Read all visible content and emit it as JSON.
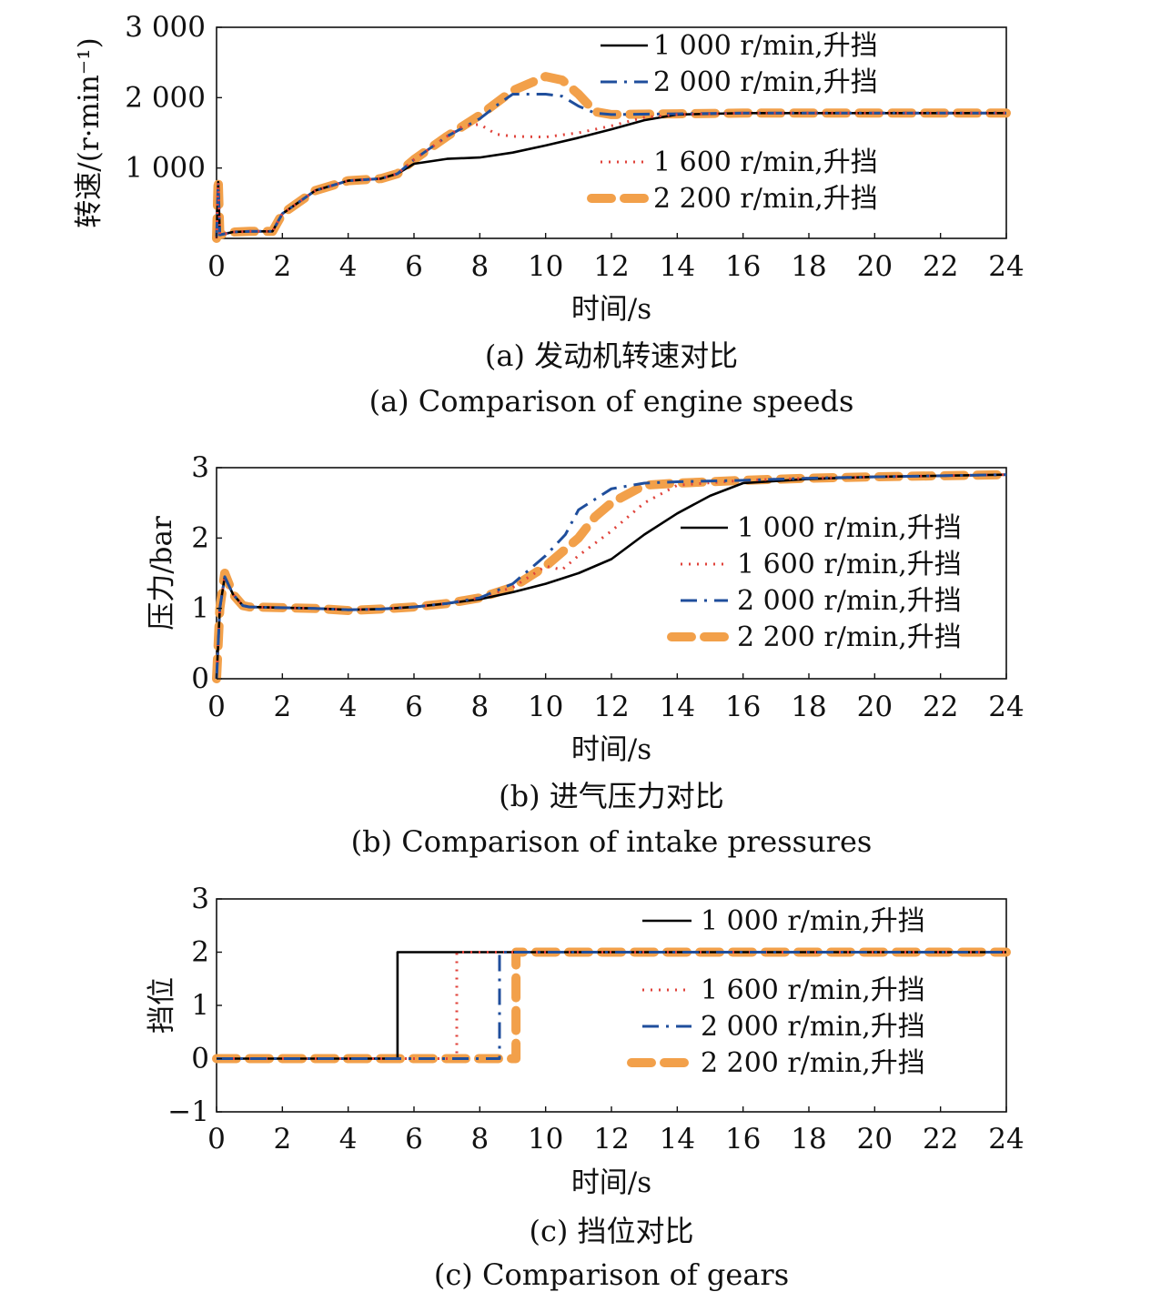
{
  "chart_data": [
    {
      "type": "line",
      "panel_label": "(a) 发动机转速对比",
      "panel_label_en": "(a) Comparison of engine speeds",
      "xlabel": "时间/s",
      "ylabel": "转速/(r·min⁻¹)",
      "xlim": [
        0,
        24
      ],
      "ylim": [
        0,
        3000
      ],
      "xticks": [
        "0",
        "2",
        "4",
        "6",
        "8",
        "10",
        "12",
        "14",
        "16",
        "18",
        "20",
        "22",
        "24"
      ],
      "yticks": [
        "3 000",
        "2 000",
        "1 000"
      ],
      "ytick_values": [
        3000,
        2000,
        1000
      ],
      "grid": false,
      "legend_position": "right",
      "series": [
        {
          "name": "1 000 r/min,升挡",
          "color": "#000000",
          "style": "solid",
          "x": [
            0,
            0.05,
            0.1,
            0.2,
            0.5,
            1.0,
            1.7,
            2.0,
            3.0,
            4.0,
            5.0,
            5.5,
            6.0,
            7.0,
            8.0,
            9.0,
            10.0,
            11.0,
            12.0,
            13.0,
            14.0,
            16.0,
            20.0,
            24.0
          ],
          "y": [
            0,
            800,
            50,
            60,
            90,
            100,
            100,
            350,
            680,
            820,
            850,
            920,
            1060,
            1130,
            1150,
            1220,
            1320,
            1430,
            1550,
            1680,
            1760,
            1780,
            1780,
            1780
          ]
        },
        {
          "name": "2 000 r/min,升挡",
          "color": "#1f4e9c",
          "style": "dashdot",
          "x": [
            0,
            0.05,
            0.1,
            0.2,
            0.5,
            1.0,
            1.7,
            2.0,
            3.0,
            4.0,
            5.0,
            5.5,
            6.0,
            7.0,
            8.0,
            8.6,
            9.0,
            10.0,
            10.5,
            11.0,
            11.5,
            12.0,
            14.0,
            16.0,
            20.0,
            24.0
          ],
          "y": [
            0,
            800,
            50,
            60,
            90,
            100,
            100,
            350,
            680,
            820,
            850,
            920,
            1120,
            1450,
            1700,
            1920,
            2050,
            2050,
            2020,
            1880,
            1780,
            1760,
            1770,
            1780,
            1780,
            1780
          ]
        },
        {
          "name": "1 600 r/min,升挡",
          "color": "#e0433b",
          "style": "dotted",
          "x": [
            0,
            0.05,
            0.1,
            0.2,
            0.5,
            1.0,
            1.7,
            2.0,
            3.0,
            4.0,
            5.0,
            5.5,
            6.0,
            7.0,
            7.5,
            8.0,
            8.5,
            9.0,
            10.0,
            11.0,
            12.0,
            13.0,
            14.0,
            16.0,
            20.0,
            24.0
          ],
          "y": [
            0,
            800,
            50,
            60,
            90,
            100,
            100,
            350,
            680,
            820,
            850,
            920,
            1120,
            1450,
            1600,
            1620,
            1480,
            1450,
            1440,
            1500,
            1600,
            1720,
            1760,
            1780,
            1780,
            1780
          ]
        },
        {
          "name": "2 200 r/min,升挡",
          "color": "#f2a04a",
          "style": "dashed-thick",
          "x": [
            0,
            0.05,
            0.1,
            0.2,
            0.5,
            1.0,
            1.7,
            2.0,
            3.0,
            4.0,
            5.0,
            5.5,
            6.0,
            7.0,
            8.0,
            9.0,
            9.5,
            10.0,
            10.5,
            11.0,
            11.5,
            12.0,
            14.0,
            16.0,
            20.0,
            24.0
          ],
          "y": [
            0,
            850,
            50,
            60,
            90,
            100,
            100,
            350,
            680,
            820,
            850,
            920,
            1120,
            1450,
            1750,
            2100,
            2200,
            2300,
            2250,
            2050,
            1800,
            1760,
            1770,
            1780,
            1780,
            1780
          ]
        }
      ]
    },
    {
      "type": "line",
      "panel_label": "(b) 进气压力对比",
      "panel_label_en": "(b) Comparison of intake pressures",
      "xlabel": "时间/s",
      "ylabel": "压力/bar",
      "xlim": [
        0,
        24
      ],
      "ylim": [
        0,
        3
      ],
      "xticks": [
        "0",
        "2",
        "4",
        "6",
        "8",
        "10",
        "12",
        "14",
        "16",
        "18",
        "20",
        "22",
        "24"
      ],
      "yticks": [
        "3",
        "2",
        "1",
        "0"
      ],
      "ytick_values": [
        3,
        2,
        1,
        0
      ],
      "grid": false,
      "legend_position": "right",
      "series": [
        {
          "name": "1 000 r/min,升挡",
          "color": "#000000",
          "style": "solid",
          "x": [
            0,
            0.1,
            0.25,
            0.5,
            0.8,
            1.0,
            2.0,
            3.0,
            4.0,
            5.0,
            6.0,
            7.0,
            8.0,
            9.0,
            10.0,
            11.0,
            12.0,
            13.0,
            14.0,
            15.0,
            16.0,
            18.0,
            20.0,
            24.0
          ],
          "y": [
            0,
            1.0,
            1.45,
            1.2,
            1.04,
            1.02,
            1.01,
            1.0,
            0.98,
            0.99,
            1.02,
            1.07,
            1.13,
            1.23,
            1.35,
            1.5,
            1.7,
            2.05,
            2.35,
            2.6,
            2.78,
            2.84,
            2.87,
            2.9
          ]
        },
        {
          "name": "1 600 r/min,升挡",
          "color": "#e0433b",
          "style": "dotted",
          "x": [
            0,
            0.1,
            0.25,
            0.5,
            0.8,
            1.0,
            2.0,
            3.0,
            4.0,
            5.0,
            6.0,
            7.0,
            8.0,
            9.0,
            10.0,
            10.5,
            11.0,
            12.0,
            13.0,
            14.0,
            16.0,
            18.0,
            20.0,
            24.0
          ],
          "y": [
            0,
            1.0,
            1.45,
            1.2,
            1.04,
            1.02,
            1.01,
            1.0,
            0.98,
            0.99,
            1.02,
            1.07,
            1.15,
            1.3,
            1.6,
            1.55,
            1.75,
            2.1,
            2.5,
            2.75,
            2.82,
            2.85,
            2.87,
            2.9
          ]
        },
        {
          "name": "2 000 r/min,升挡",
          "color": "#1f4e9c",
          "style": "dashdot",
          "x": [
            0,
            0.1,
            0.25,
            0.5,
            0.8,
            1.0,
            2.0,
            3.0,
            4.0,
            5.0,
            6.0,
            7.0,
            8.0,
            9.0,
            10.0,
            10.6,
            11.0,
            12.0,
            13.0,
            14.0,
            16.0,
            18.0,
            20.0,
            24.0
          ],
          "y": [
            0,
            1.0,
            1.45,
            1.2,
            1.04,
            1.02,
            1.01,
            1.0,
            0.98,
            0.99,
            1.02,
            1.07,
            1.15,
            1.35,
            1.75,
            2.05,
            2.4,
            2.7,
            2.78,
            2.8,
            2.82,
            2.85,
            2.87,
            2.9
          ]
        },
        {
          "name": "2 200 r/min,升挡",
          "color": "#f2a04a",
          "style": "dashed-thick",
          "x": [
            0,
            0.1,
            0.25,
            0.5,
            0.8,
            1.0,
            2.0,
            3.0,
            4.0,
            5.0,
            6.0,
            7.0,
            8.0,
            9.0,
            10.0,
            11.0,
            11.5,
            12.0,
            13.0,
            14.0,
            16.0,
            18.0,
            20.0,
            24.0
          ],
          "y": [
            0,
            1.0,
            1.5,
            1.2,
            1.04,
            1.02,
            1.01,
            1.0,
            0.97,
            0.99,
            1.02,
            1.07,
            1.15,
            1.3,
            1.6,
            2.0,
            2.3,
            2.5,
            2.75,
            2.78,
            2.82,
            2.85,
            2.87,
            2.9
          ]
        }
      ]
    },
    {
      "type": "line",
      "panel_label": "(c) 挡位对比",
      "panel_label_en": "(c) Comparison of gears",
      "xlabel": "时间/s",
      "ylabel": "挡位",
      "xlim": [
        0,
        24
      ],
      "ylim": [
        -1,
        3
      ],
      "xticks": [
        "0",
        "2",
        "4",
        "6",
        "8",
        "10",
        "12",
        "14",
        "16",
        "18",
        "20",
        "22",
        "24"
      ],
      "yticks": [
        "3",
        "2",
        "1",
        "0",
        "−1"
      ],
      "ytick_values": [
        3,
        2,
        1,
        0,
        -1
      ],
      "grid": false,
      "legend_position": "right",
      "series": [
        {
          "name": "1 000 r/min,升挡",
          "color": "#000000",
          "style": "solid",
          "x": [
            0,
            5.5,
            5.5,
            24
          ],
          "y": [
            0,
            0,
            2,
            2
          ]
        },
        {
          "name": "1 600 r/min,升挡",
          "color": "#e0433b",
          "style": "dotted",
          "x": [
            0,
            7.3,
            7.3,
            24
          ],
          "y": [
            0,
            0,
            2,
            2
          ]
        },
        {
          "name": "2 000 r/min,升挡",
          "color": "#1f4e9c",
          "style": "dashdot",
          "x": [
            0,
            8.6,
            8.6,
            24
          ],
          "y": [
            0,
            0,
            2,
            2
          ]
        },
        {
          "name": "2 200 r/min,升挡",
          "color": "#f2a04a",
          "style": "dashed-thick",
          "x": [
            0,
            9.1,
            9.1,
            24
          ],
          "y": [
            0,
            0,
            2,
            2
          ]
        }
      ]
    }
  ]
}
